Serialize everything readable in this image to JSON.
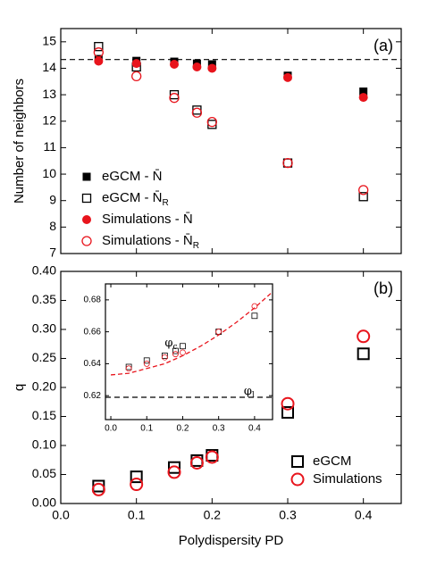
{
  "chart_data": [
    {
      "type": "scatter",
      "panel_label": "(a)",
      "ylabel": "Number of neighbors",
      "xlim": [
        0,
        0.45
      ],
      "xticks": [
        0,
        0.1,
        0.2,
        0.3,
        0.4
      ],
      "ylim": [
        7,
        15.5
      ],
      "yticks": [
        7,
        8,
        9,
        10,
        11,
        12,
        13,
        14,
        15
      ],
      "hline": 14.33,
      "legend": "lower left",
      "series": [
        {
          "name": "eGCM - N̄",
          "marker": "square",
          "filled": true,
          "color": "#000000",
          "x": [
            0.05,
            0.1,
            0.15,
            0.18,
            0.2,
            0.3,
            0.4
          ],
          "values": [
            14.35,
            14.28,
            14.25,
            14.18,
            14.15,
            13.72,
            13.12
          ]
        },
        {
          "name": "eGCM - N̄",
          "sub": "R",
          "marker": "square",
          "filled": false,
          "color": "#000000",
          "x": [
            0.05,
            0.1,
            0.15,
            0.18,
            0.2,
            0.3,
            0.4
          ],
          "values": [
            14.82,
            14.05,
            13.0,
            12.42,
            11.88,
            10.42,
            9.15
          ]
        },
        {
          "name": "Simulations - N̄",
          "marker": "circle",
          "filled": true,
          "color": "#e8141c",
          "x": [
            0.05,
            0.1,
            0.15,
            0.18,
            0.2,
            0.3,
            0.4
          ],
          "values": [
            14.27,
            14.18,
            14.15,
            14.05,
            14.0,
            13.65,
            12.9
          ]
        },
        {
          "name": "Simulations - N̄",
          "sub": "R",
          "marker": "circle",
          "filled": false,
          "color": "#e8141c",
          "x": [
            0.05,
            0.1,
            0.15,
            0.18,
            0.2,
            0.3,
            0.4
          ],
          "values": [
            14.6,
            13.7,
            12.88,
            12.32,
            11.97,
            10.42,
            9.4
          ]
        }
      ]
    },
    {
      "type": "scatter",
      "panel_label": "(b)",
      "ylabel": "q",
      "xlabel": "Polydispersity PD",
      "xlim": [
        0,
        0.45
      ],
      "xticks": [
        {
          "value": 0,
          "label": "0.0"
        },
        {
          "value": 0.1,
          "label": "0.1"
        },
        {
          "value": 0.2,
          "label": "0.2"
        },
        {
          "value": 0.3,
          "label": "0.3"
        },
        {
          "value": 0.4,
          "label": "0.4"
        }
      ],
      "ylim": [
        0,
        0.4
      ],
      "yticks": [
        {
          "value": 0,
          "label": "0.00"
        },
        0.05,
        {
          "value": 0.1,
          "label": "0.10"
        },
        0.15,
        {
          "value": 0.2,
          "label": "0.20"
        },
        0.25,
        {
          "value": 0.3,
          "label": "0.30"
        },
        0.35,
        {
          "value": 0.4,
          "label": "0.40"
        }
      ],
      "legend": "lower right",
      "series": [
        {
          "name": "eGCM",
          "marker": "square",
          "filled": false,
          "color": "#000000",
          "x": [
            0.05,
            0.1,
            0.15,
            0.18,
            0.2,
            0.3,
            0.4
          ],
          "values": [
            0.03,
            0.046,
            0.062,
            0.074,
            0.083,
            0.157,
            0.258
          ]
        },
        {
          "name": "Simulations",
          "marker": "circle",
          "filled": false,
          "color": "#e8141c",
          "x": [
            0.05,
            0.1,
            0.15,
            0.18,
            0.2,
            0.3,
            0.4
          ],
          "values": [
            0.024,
            0.033,
            0.054,
            0.07,
            0.08,
            0.172,
            0.288
          ]
        }
      ]
    },
    {
      "type": "scatter",
      "inset": true,
      "xlim": [
        -0.015,
        0.45
      ],
      "xticks": [
        {
          "value": 0,
          "label": "0.0"
        },
        {
          "value": 0.1,
          "label": "0.1"
        },
        {
          "value": 0.2,
          "label": "0.2"
        },
        {
          "value": 0.3,
          "label": "0.3"
        },
        {
          "value": 0.4,
          "label": "0.4"
        }
      ],
      "ylim": [
        0.605,
        0.69
      ],
      "yticks": [
        0.62,
        0.64,
        0.66,
        0.68
      ],
      "hline": 0.619,
      "annotations": [
        {
          "symbol": "φ",
          "sub": "c",
          "x": 0.15,
          "y": 0.653
        },
        {
          "symbol": "φ",
          "sub": "l",
          "x": 0.37,
          "y": 0.623
        }
      ],
      "series": [
        {
          "marker": "line",
          "dashed": true,
          "color": "#e8141c",
          "x": [
            0,
            0.05,
            0.1,
            0.15,
            0.2,
            0.25,
            0.3,
            0.35,
            0.4,
            0.45
          ],
          "values": [
            0.633,
            0.634,
            0.637,
            0.64,
            0.645,
            0.651,
            0.658,
            0.666,
            0.675,
            0.685
          ]
        },
        {
          "marker": "square",
          "filled": false,
          "color": "#000000",
          "x": [
            0.05,
            0.1,
            0.15,
            0.18,
            0.2,
            0.3,
            0.4
          ],
          "values": [
            0.638,
            0.642,
            0.645,
            0.648,
            0.651,
            0.66,
            0.67
          ]
        },
        {
          "marker": "circle",
          "filled": false,
          "color": "#e8141c",
          "x": [
            0.05,
            0.1,
            0.15,
            0.18,
            0.2,
            0.3,
            0.4
          ],
          "values": [
            0.637,
            0.64,
            0.644,
            0.646,
            0.647,
            0.66,
            0.676
          ]
        }
      ]
    }
  ]
}
